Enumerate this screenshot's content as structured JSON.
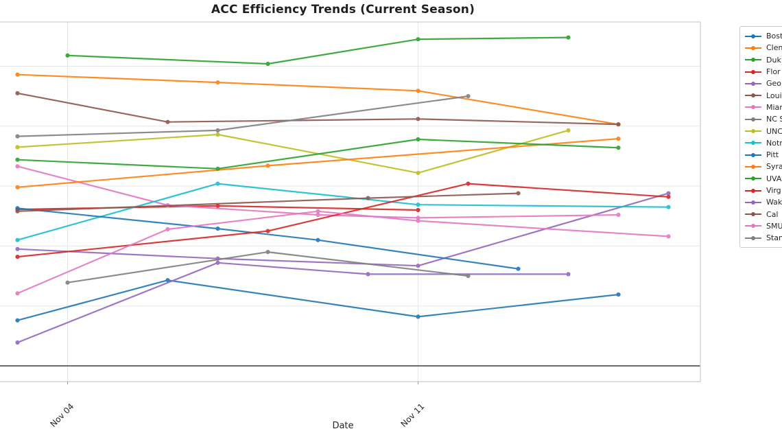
{
  "figure": {
    "title": "ACC Efficiency Trends (Current Season)"
  },
  "axes": {
    "xlabel": "Date",
    "x_tick_labels": [
      "Nov 04",
      "Nov 11"
    ],
    "y_tick_labels_visible": false
  },
  "legend": {
    "position": "outside-right (clipped by image edge)",
    "items": [
      {
        "label": "Bost",
        "color": "#1f77b4"
      },
      {
        "label": "Clem",
        "color": "#ff7f0e"
      },
      {
        "label": "Duk",
        "color": "#2ca02c"
      },
      {
        "label": "Flor",
        "color": "#d62728"
      },
      {
        "label": "Geo",
        "color": "#9467bd"
      },
      {
        "label": "Loui",
        "color": "#8c564b"
      },
      {
        "label": "Miam",
        "color": "#e377c2"
      },
      {
        "label": "NC S",
        "color": "#7f7f7f"
      },
      {
        "label": "UNC",
        "color": "#bcbd22"
      },
      {
        "label": "Notr",
        "color": "#17becf"
      },
      {
        "label": "Pitt",
        "color": "#1f77b4"
      },
      {
        "label": "Syra",
        "color": "#ff7f0e"
      },
      {
        "label": "UVA",
        "color": "#2ca02c"
      },
      {
        "label": "Virg",
        "color": "#d62728"
      },
      {
        "label": "Wak",
        "color": "#9467bd"
      },
      {
        "label": "Cal",
        "color": "#8c564b"
      },
      {
        "label": "SMU",
        "color": "#e377c2"
      },
      {
        "label": "Stan",
        "color": "#7f7f7f"
      }
    ]
  },
  "chart_data": {
    "type": "line",
    "title": "ACC Efficiency Trends (Current Season)",
    "xlabel": "Date",
    "x_ticks": [
      {
        "day": 4,
        "label": "Nov 04"
      },
      {
        "day": 11,
        "label": "Nov 11"
      }
    ],
    "x_range_days": [
      2.65,
      16.65
    ],
    "grid": true,
    "y_tick_labels_visible": false,
    "y_gridlines_estimated_units": [
      10,
      20,
      30,
      40,
      50
    ],
    "y_zero_reference_line": 0,
    "y_range_estimated": [
      -2.6,
      57.4
    ],
    "marker": "circle",
    "series": [
      {
        "name": "Bost",
        "color": "#1f77b4",
        "points": [
          [
            3,
            7.6
          ],
          [
            6,
            14.3
          ],
          [
            11,
            8.2
          ],
          [
            15,
            11.9
          ]
        ]
      },
      {
        "name": "Clem",
        "color": "#ff7f0e",
        "points": [
          [
            3,
            48.6
          ],
          [
            7,
            47.3
          ],
          [
            11,
            45.9
          ],
          [
            15,
            40.3
          ]
        ]
      },
      {
        "name": "Duk",
        "color": "#2ca02c",
        "points": [
          [
            4,
            51.8
          ],
          [
            8,
            50.4
          ],
          [
            11,
            54.5
          ],
          [
            14,
            54.8
          ]
        ]
      },
      {
        "name": "Flor",
        "color": "#d62728",
        "points": [
          [
            3,
            26.1
          ],
          [
            7,
            26.7
          ],
          [
            11,
            26.0
          ]
        ]
      },
      {
        "name": "Geo",
        "color": "#9467bd",
        "points": [
          [
            3,
            19.5
          ],
          [
            7,
            17.9
          ],
          [
            11,
            16.7
          ],
          [
            16,
            28.8
          ]
        ]
      },
      {
        "name": "Loui",
        "color": "#8c564b",
        "points": [
          [
            3,
            45.5
          ],
          [
            6,
            40.7
          ],
          [
            11,
            41.2
          ],
          [
            15,
            40.3
          ]
        ]
      },
      {
        "name": "Miam",
        "color": "#e377c2",
        "points": [
          [
            3,
            33.3
          ],
          [
            6,
            26.8
          ],
          [
            9,
            25.2
          ],
          [
            11,
            24.7
          ],
          [
            15,
            25.2
          ]
        ]
      },
      {
        "name": "NC S",
        "color": "#7f7f7f",
        "points": [
          [
            3,
            38.3
          ],
          [
            7,
            39.3
          ],
          [
            12,
            45.0
          ]
        ]
      },
      {
        "name": "UNC",
        "color": "#bcbd22",
        "points": [
          [
            3,
            36.5
          ],
          [
            7,
            38.6
          ],
          [
            11,
            32.2
          ],
          [
            14,
            39.3
          ]
        ]
      },
      {
        "name": "Notr",
        "color": "#17becf",
        "points": [
          [
            3,
            21.0
          ],
          [
            7,
            30.4
          ],
          [
            11,
            26.9
          ],
          [
            16,
            26.5
          ]
        ]
      },
      {
        "name": "Pitt",
        "color": "#1f77b4",
        "points": [
          [
            3,
            26.3
          ],
          [
            7,
            22.9
          ],
          [
            9,
            21.0
          ],
          [
            13,
            16.2
          ]
        ]
      },
      {
        "name": "Syra",
        "color": "#ff7f0e",
        "points": [
          [
            3,
            29.8
          ],
          [
            8,
            33.4
          ],
          [
            15,
            37.9
          ]
        ]
      },
      {
        "name": "UVA",
        "color": "#2ca02c",
        "points": [
          [
            3,
            34.4
          ],
          [
            7,
            32.9
          ],
          [
            11,
            37.8
          ],
          [
            15,
            36.4
          ]
        ]
      },
      {
        "name": "Virg",
        "color": "#d62728",
        "points": [
          [
            3,
            18.2
          ],
          [
            8,
            22.5
          ],
          [
            12,
            30.4
          ],
          [
            16,
            28.2
          ]
        ]
      },
      {
        "name": "Wak",
        "color": "#9467bd",
        "points": [
          [
            3,
            3.9
          ],
          [
            7,
            17.2
          ],
          [
            10,
            15.3
          ],
          [
            14,
            15.3
          ]
        ]
      },
      {
        "name": "Cal",
        "color": "#8c564b",
        "points": [
          [
            3,
            25.8
          ],
          [
            10,
            28.0
          ],
          [
            13,
            28.8
          ]
        ]
      },
      {
        "name": "SMU",
        "color": "#e377c2",
        "points": [
          [
            3,
            12.1
          ],
          [
            6,
            22.8
          ],
          [
            9,
            25.8
          ],
          [
            11,
            24.2
          ],
          [
            16,
            21.6
          ]
        ]
      },
      {
        "name": "Stan",
        "color": "#7f7f7f",
        "points": [
          [
            4,
            13.9
          ],
          [
            8,
            19.0
          ],
          [
            12,
            15.0
          ]
        ]
      }
    ]
  }
}
